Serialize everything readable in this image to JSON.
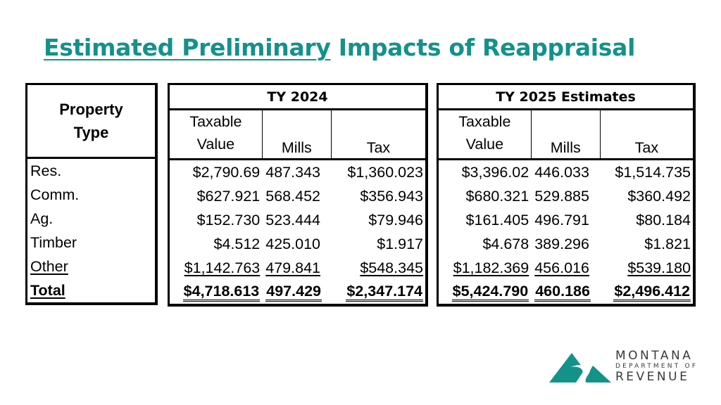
{
  "slide": {
    "title_underlined": "Estimated Preliminary",
    "title_rest": " Impacts of Reappraisal"
  },
  "left": {
    "header_line1": "Property",
    "header_line2": "Type",
    "rows": [
      "Res.",
      "Comm.",
      "Ag.",
      "Timber",
      "Other",
      "Total"
    ]
  },
  "ty2024": {
    "year": "TY 2024",
    "col_value_line1": "Taxable",
    "col_value_line2": "Value",
    "col_mills": "Mills",
    "col_tax": "Tax",
    "rows": [
      {
        "value": "$2,790.69",
        "mills": "487.343",
        "tax": "$1,360.023"
      },
      {
        "value": "$627.921",
        "mills": "568.452",
        "tax": "$356.943"
      },
      {
        "value": "$152.730",
        "mills": "523.444",
        "tax": "$79.946"
      },
      {
        "value": "$4.512",
        "mills": "425.010",
        "tax": "$1.917"
      },
      {
        "value": "$1,142.763",
        "mills": "479.841",
        "tax": "$548.345"
      },
      {
        "value": "$4,718.613",
        "mills": "497.429",
        "tax": "$2,347.174"
      }
    ]
  },
  "ty2025": {
    "year": "TY 2025 Estimates",
    "col_value_line1": "Taxable",
    "col_value_line2": "Value",
    "col_mills": "Mills",
    "col_tax": "Tax",
    "rows": [
      {
        "value": "$3,396.02",
        "mills": "446.033",
        "tax": "$1,514.735"
      },
      {
        "value": "$680.321",
        "mills": "529.885",
        "tax": "$360.492"
      },
      {
        "value": "$161.405",
        "mills": "496.791",
        "tax": "$80.184"
      },
      {
        "value": "$4.678",
        "mills": "389.296",
        "tax": "$1.821"
      },
      {
        "value": "$1,182.369",
        "mills": "456.016",
        "tax": "$539.180"
      },
      {
        "value": "$5,424.790",
        "mills": "460.186",
        "tax": "$2,496.412"
      }
    ]
  },
  "logo": {
    "line1": "MONTANA",
    "line2": "DEPARTMENT OF",
    "line3": "REVENUE"
  },
  "colors": {
    "accent": "#13928a",
    "text": "#000000"
  }
}
